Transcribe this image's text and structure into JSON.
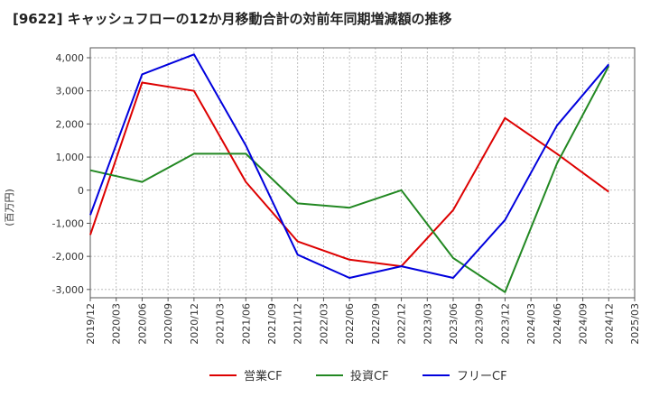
{
  "chart_data": {
    "type": "line",
    "title": "[9622]  キャッシュフローの12か月移動合計の対前年同期増減額の推移",
    "ylabel": "(百万円)",
    "xlabel": "",
    "ylim": [
      -3250,
      4300
    ],
    "yticks": [
      -3000,
      -2000,
      -1000,
      0,
      1000,
      2000,
      3000,
      4000
    ],
    "ytick_labels": [
      "-3,000",
      "-2,000",
      "-1,000",
      "0",
      "1,000",
      "2,000",
      "3,000",
      "4,000"
    ],
    "xticks": [
      "2019/12",
      "2020/03",
      "2020/06",
      "2020/09",
      "2020/12",
      "2021/03",
      "2021/06",
      "2021/09",
      "2021/12",
      "2022/03",
      "2022/06",
      "2022/09",
      "2022/12",
      "2023/03",
      "2023/06",
      "2023/09",
      "2023/12",
      "2024/03",
      "2024/06",
      "2024/09",
      "2024/12",
      "2025/03"
    ],
    "grid": true,
    "legend_position": "bottom",
    "series": [
      {
        "name": "営業CF",
        "color": "#dd0000",
        "x": [
          "2019/12",
          "2020/06",
          "2020/12",
          "2021/06",
          "2021/12",
          "2022/06",
          "2022/12",
          "2023/06",
          "2023/12",
          "2024/06",
          "2024/12"
        ],
        "values": [
          -1350,
          3250,
          3000,
          250,
          -1550,
          -2100,
          -2300,
          -600,
          2180,
          1100,
          -50
        ]
      },
      {
        "name": "投資CF",
        "color": "#228822",
        "x": [
          "2019/12",
          "2020/06",
          "2020/12",
          "2021/06",
          "2021/12",
          "2022/06",
          "2022/12",
          "2023/06",
          "2023/12",
          "2024/06",
          "2024/12"
        ],
        "values": [
          600,
          250,
          1100,
          1100,
          -400,
          -530,
          0,
          -2050,
          -3080,
          800,
          3750
        ]
      },
      {
        "name": "フリーCF",
        "color": "#0000dd",
        "x": [
          "2019/12",
          "2020/06",
          "2020/12",
          "2021/06",
          "2021/12",
          "2022/06",
          "2022/12",
          "2023/06",
          "2023/12",
          "2024/06",
          "2024/12"
        ],
        "values": [
          -750,
          3500,
          4100,
          1350,
          -1950,
          -2650,
          -2300,
          -2650,
          -900,
          1950,
          3800
        ]
      }
    ]
  }
}
